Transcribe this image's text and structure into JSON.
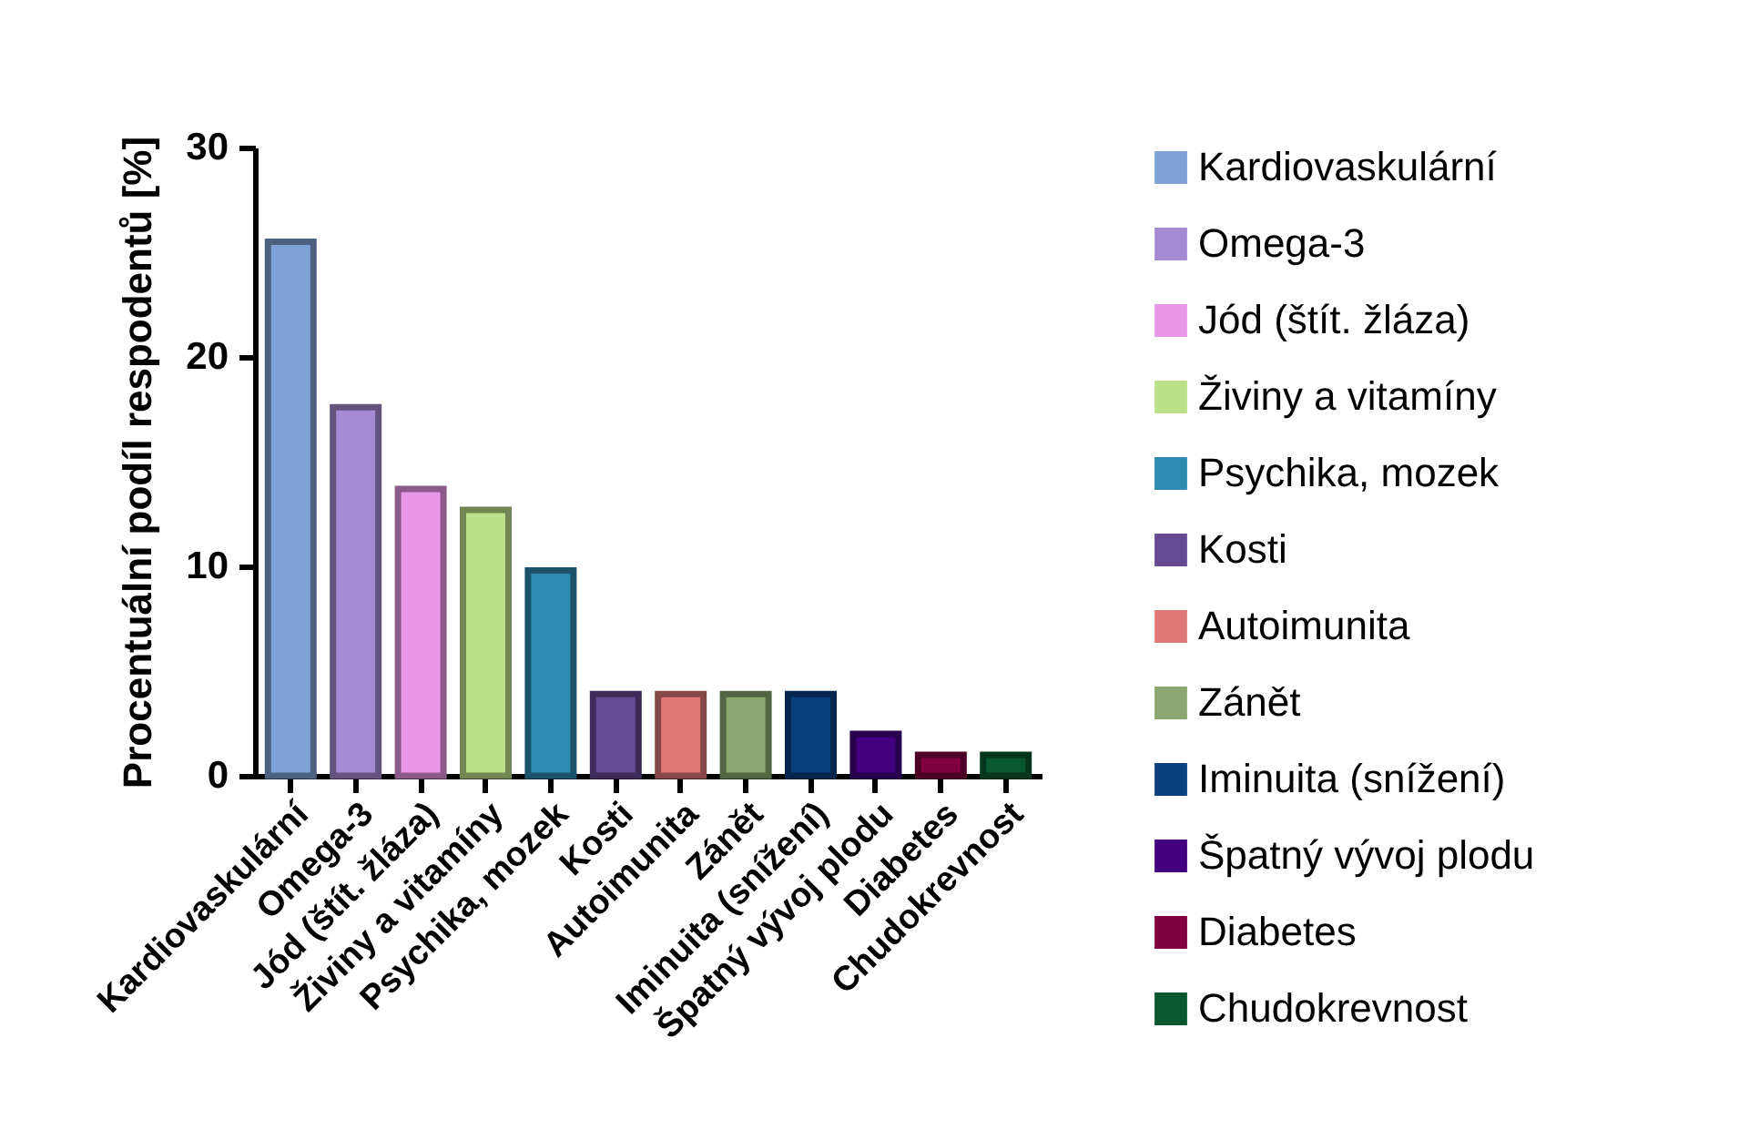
{
  "chart_data": {
    "type": "bar",
    "ylabel": "Procentuální podíl respodentů [%]",
    "categories": [
      "Kardiovaskulární",
      "Omega-3",
      "Jód (štít. žláza)",
      "Živiny a vitamíny",
      "Psychika, mozek",
      "Kosti",
      "Autoimunita",
      "Zánět",
      "Iminuita (snížení)",
      "Špatný vývoj plodu",
      "Diabetes",
      "Chudokrevnost"
    ],
    "series": [
      {
        "name": "Kardiovaskulární",
        "color": "#7ea1d6",
        "values": [
          25.5,
          null,
          null,
          null,
          null,
          null,
          null,
          null,
          null,
          null,
          null,
          null
        ]
      },
      {
        "name": "Omega-3",
        "color": "#a68bd4",
        "values": [
          null,
          17.6,
          null,
          null,
          null,
          null,
          null,
          null,
          null,
          null,
          null,
          null
        ]
      },
      {
        "name": "Jód (štít. žláza)",
        "color": "#e996e8",
        "values": [
          null,
          null,
          13.7,
          null,
          null,
          null,
          null,
          null,
          null,
          null,
          null,
          null
        ]
      },
      {
        "name": "Živiny a vitamíny",
        "color": "#bde08a",
        "values": [
          null,
          null,
          null,
          12.7,
          null,
          null,
          null,
          null,
          null,
          null,
          null,
          null
        ]
      },
      {
        "name": "Psychika, mozek",
        "color": "#2e8ab0",
        "values": [
          null,
          null,
          null,
          null,
          9.8,
          null,
          null,
          null,
          null,
          null,
          null,
          null
        ]
      },
      {
        "name": "Kosti",
        "color": "#664a94",
        "values": [
          null,
          null,
          null,
          null,
          null,
          3.9,
          null,
          null,
          null,
          null,
          null,
          null
        ]
      },
      {
        "name": "Autoimunita",
        "color": "#e07878",
        "values": [
          null,
          null,
          null,
          null,
          null,
          null,
          3.9,
          null,
          null,
          null,
          null,
          null
        ]
      },
      {
        "name": "Zánět",
        "color": "#8ca870",
        "values": [
          null,
          null,
          null,
          null,
          null,
          null,
          null,
          3.9,
          null,
          null,
          null,
          null
        ]
      },
      {
        "name": "Iminuita (snížení)",
        "color": "#0a3f80",
        "values": [
          null,
          null,
          null,
          null,
          null,
          null,
          null,
          null,
          3.9,
          null,
          null,
          null
        ]
      },
      {
        "name": "Špatný vývoj plodu",
        "color": "#420080",
        "values": [
          null,
          null,
          null,
          null,
          null,
          null,
          null,
          null,
          null,
          2.0,
          null,
          null
        ]
      },
      {
        "name": "Diabetes",
        "color": "#800040",
        "values": [
          null,
          null,
          null,
          null,
          null,
          null,
          null,
          null,
          null,
          null,
          1.0,
          null
        ]
      },
      {
        "name": "Chudokrevnost",
        "color": "#0a5830",
        "values": [
          null,
          null,
          null,
          null,
          null,
          null,
          null,
          null,
          null,
          null,
          null,
          1.0
        ]
      }
    ],
    "ylim": [
      0,
      30
    ],
    "yticks": [
      0,
      10,
      20,
      30
    ],
    "grid": false,
    "legend": "right"
  }
}
